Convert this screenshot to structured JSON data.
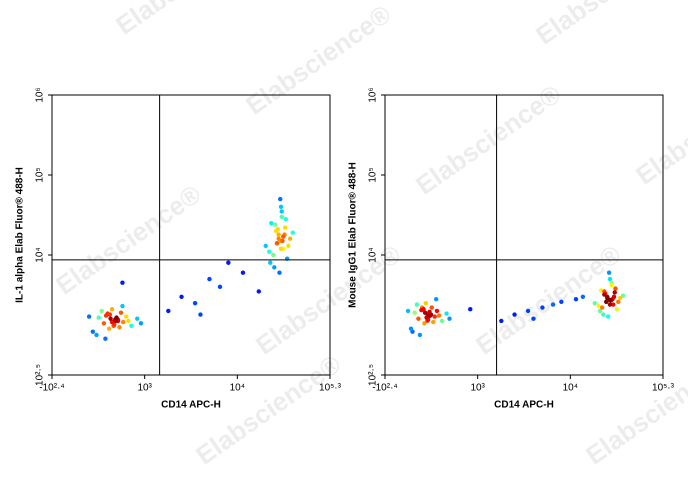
{
  "watermark": "Elabscience®",
  "chart_data": [
    {
      "type": "scatter",
      "xlabel": "CD14 APC-H",
      "ylabel": "IL-1 alpha Elab Fluor® 488-H",
      "xscale": "biexponential",
      "yscale": "log",
      "xlim": [
        -251,
        199526
      ],
      "ylim": [
        316,
        1000000
      ],
      "xticks": [
        {
          "value": -251,
          "label": "-10²·⁴"
        },
        {
          "value": 1000,
          "label": "10³"
        },
        {
          "value": 10000,
          "label": "10⁴"
        },
        {
          "value": 199526,
          "label": "10⁵·³"
        }
      ],
      "yticks": [
        {
          "value": 316,
          "label": "10²·⁵"
        },
        {
          "value": 10000,
          "label": "10⁴"
        },
        {
          "value": 100000,
          "label": "10⁵"
        },
        {
          "value": 1000000,
          "label": "10⁶"
        }
      ],
      "gate": {
        "x": 1450,
        "y": 8700
      },
      "x": [
        600,
        450,
        750,
        520,
        680,
        380,
        820,
        560,
        640,
        300,
        900,
        480,
        710,
        590,
        530,
        660,
        420,
        780,
        350,
        620,
        560,
        700,
        470,
        640,
        250,
        950,
        540,
        610,
        580,
        500,
        40000,
        35000,
        45000,
        30000,
        50000,
        38000,
        42000,
        28000,
        55000,
        33000,
        47000,
        36000,
        41000,
        25000,
        60000,
        39000,
        44000,
        32000,
        48000,
        37000,
        43000,
        34000,
        52000,
        40000,
        29000,
        46000,
        38000,
        42000,
        36000,
        41000,
        2500,
        5000,
        8000,
        1800,
        3500,
        6500,
        12000,
        4000,
        20000,
        700
      ],
      "y": [
        1550,
        1400,
        1700,
        1200,
        1900,
        1650,
        1300,
        2100,
        1500,
        1100,
        1600,
        1750,
        1450,
        1350,
        1800,
        1250,
        2000,
        1500,
        1000,
        1650,
        1450,
        2300,
        900,
        1550,
        1700,
        1400,
        1600,
        1500,
        1300,
        1850,
        15000,
        20000,
        12000,
        25000,
        9000,
        18000,
        30000,
        11000,
        16000,
        7000,
        22000,
        14000,
        40000,
        13000,
        19000,
        6000,
        17000,
        10000,
        28000,
        21000,
        15000,
        24000,
        13000,
        50000,
        8000,
        18000,
        16000,
        35000,
        14000,
        12000,
        3000,
        5000,
        8000,
        2000,
        2500,
        4000,
        6000,
        1800,
        3500,
        4500
      ]
    },
    {
      "type": "scatter",
      "xlabel": "CD14 APC-H",
      "ylabel": "Mouse IgG1 Elab Fluor® 488-H",
      "xscale": "biexponential",
      "yscale": "log",
      "xlim": [
        -251,
        199526
      ],
      "ylim": [
        316,
        1000000
      ],
      "xticks": [
        {
          "value": -251,
          "label": "-10²·⁴"
        },
        {
          "value": 1000,
          "label": "10³"
        },
        {
          "value": 10000,
          "label": "10⁴"
        },
        {
          "value": 199526,
          "label": "10⁵·³"
        }
      ],
      "yticks": [
        {
          "value": 316,
          "label": "10²·⁵"
        },
        {
          "value": 10000,
          "label": "10⁴"
        },
        {
          "value": 100000,
          "label": "10⁵"
        },
        {
          "value": 1000000,
          "label": "10⁶"
        }
      ],
      "gate": {
        "x": 1600,
        "y": 8700
      },
      "x": [
        325,
        200,
        450,
        280,
        380,
        150,
        520,
        300,
        360,
        100,
        580,
        240,
        420,
        330,
        270,
        400,
        180,
        480,
        120,
        350,
        310,
        440,
        220,
        370,
        60,
        620,
        290,
        340,
        320,
        250,
        35000,
        30000,
        40000,
        27000,
        45000,
        33000,
        38000,
        25000,
        50000,
        29000,
        42000,
        32000,
        36000,
        22000,
        55000,
        34000,
        39000,
        28000,
        43000,
        31000,
        37000,
        30000,
        47000,
        35000,
        26000,
        41000,
        33000,
        38000,
        32000,
        36000,
        2500,
        5000,
        8000,
        1800,
        3500,
        6500,
        12000,
        4000,
        15000,
        900
      ],
      "y": [
        1800,
        1600,
        2000,
        1400,
        2200,
        1900,
        1500,
        2500,
        1750,
        1200,
        1850,
        2050,
        1700,
        1550,
        2100,
        1450,
        2400,
        1750,
        1100,
        1950,
        1650,
        2800,
        1000,
        1800,
        2000,
        1600,
        1900,
        1700,
        1500,
        2200,
        2750,
        3200,
        2400,
        3600,
        2100,
        3000,
        4200,
        2300,
        2900,
        1800,
        3400,
        2600,
        5000,
        2500,
        3100,
        1700,
        2800,
        2200,
        3800,
        3300,
        2700,
        3500,
        2600,
        6000,
        2000,
        3000,
        2900,
        4500,
        2600,
        2400,
        1800,
        2200,
        2600,
        1500,
        2000,
        2400,
        2800,
        1600,
        3000,
        2100
      ]
    }
  ]
}
